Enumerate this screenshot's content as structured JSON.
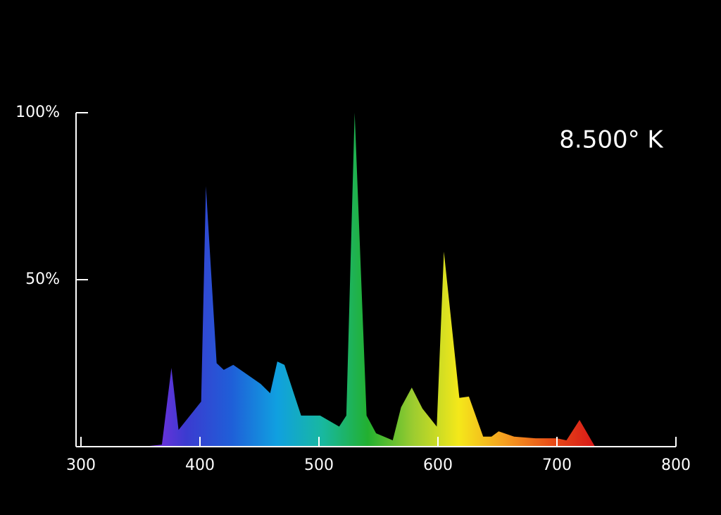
{
  "chart_data": {
    "type": "area",
    "annotation": "8.500° K",
    "x": [
      352,
      368,
      376,
      382,
      401,
      405,
      414,
      420,
      428,
      451,
      459,
      465,
      471,
      485,
      501,
      517,
      523,
      530,
      540,
      548,
      562,
      569,
      578,
      587,
      599,
      605,
      618,
      626,
      638,
      645,
      651,
      664,
      682,
      700,
      708,
      719,
      732
    ],
    "values": [
      0,
      0.6,
      23.6,
      5,
      13.5,
      78,
      25,
      23,
      24.5,
      18.8,
      16,
      25.5,
      24.5,
      9.3,
      9.3,
      6,
      9.3,
      100,
      9.3,
      4,
      1.9,
      11.8,
      17.7,
      11.4,
      6,
      58.4,
      14.6,
      15,
      3,
      3,
      4.6,
      3,
      2.5,
      2.5,
      1.9,
      8,
      0
    ],
    "gradient": [
      "#8a2be2",
      "#3b3bd0",
      "#1f5fd8",
      "#10a0e0",
      "#18b8a0",
      "#22b030",
      "#9ccc30",
      "#f4e81a",
      "#f5a020",
      "#e85018",
      "#d81818"
    ],
    "xlim": [
      300,
      800
    ],
    "xticks": [
      300,
      400,
      500,
      600,
      700,
      800
    ],
    "ylim": [
      0,
      100
    ],
    "yticks": [
      {
        "value": 50,
        "label": "50%"
      },
      {
        "value": 100,
        "label": "100%"
      }
    ]
  }
}
